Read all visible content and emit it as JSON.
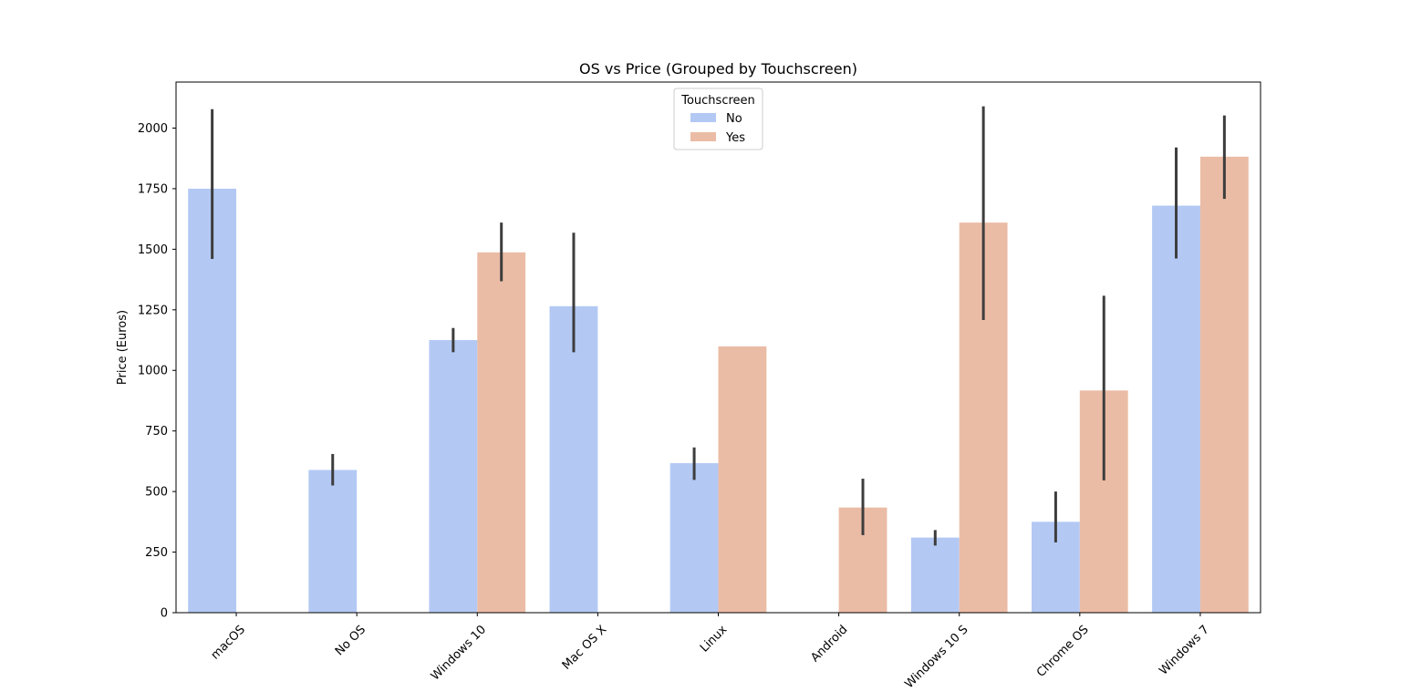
{
  "chart_data": {
    "type": "bar",
    "title": "OS vs Price (Grouped by Touchscreen)",
    "xlabel": "",
    "ylabel": "Price (Euros)",
    "ylim": [
      0,
      2190
    ],
    "yticks": [
      0,
      250,
      500,
      750,
      1000,
      1250,
      1500,
      1750,
      2000
    ],
    "categories": [
      "macOS",
      "No OS",
      "Windows 10",
      "Mac OS X",
      "Linux",
      "Android",
      "Windows 10 S",
      "Chrome OS",
      "Windows 7"
    ],
    "legend": {
      "title": "Touchscreen",
      "placement": "upper center"
    },
    "grid": false,
    "series": [
      {
        "name": "No",
        "color": "#b3c9f4",
        "values": [
          1750,
          589,
          1125,
          1265,
          617,
          null,
          310,
          375,
          1680
        ],
        "error_low": [
          1460,
          525,
          1075,
          1075,
          548,
          null,
          277,
          290,
          1462
        ],
        "error_high": [
          2078,
          655,
          1175,
          1568,
          682,
          null,
          341,
          500,
          1920
        ]
      },
      {
        "name": "Yes",
        "color": "#ebbca5",
        "values": [
          null,
          null,
          1487,
          null,
          1099,
          434,
          1610,
          917,
          1882
        ],
        "error_low": [
          null,
          null,
          1368,
          null,
          null,
          320,
          1208,
          546,
          1708
        ],
        "error_high": [
          null,
          null,
          1610,
          null,
          null,
          553,
          2090,
          1308,
          2052
        ]
      }
    ],
    "error_bar_color": "#3d3d3d"
  }
}
